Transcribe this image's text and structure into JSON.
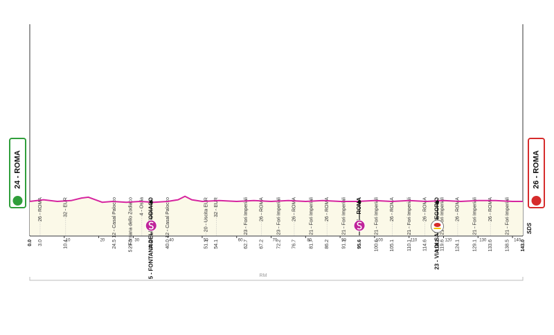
{
  "chart_data": {
    "type": "profile",
    "xlim": [
      0,
      143
    ],
    "xticks": [
      10,
      20,
      30,
      40,
      50,
      60,
      70,
      80,
      90,
      100,
      110,
      120,
      130,
      140
    ],
    "ylim": [
      0,
      100
    ],
    "color": "#d6249f",
    "elevation": {
      "x": [
        0,
        4,
        8,
        12,
        15,
        17,
        19,
        21,
        24,
        28,
        32,
        36,
        40,
        43,
        45,
        47,
        50,
        55,
        60,
        65,
        70,
        75,
        80,
        85,
        90,
        95,
        100,
        105,
        110,
        115,
        120,
        125,
        130,
        135,
        140,
        143
      ],
      "values": [
        40,
        42,
        40,
        41,
        44,
        45,
        42,
        39,
        40,
        39,
        40,
        39,
        40,
        42,
        46,
        42,
        40,
        41,
        40,
        41,
        40,
        41,
        40,
        41,
        40,
        40,
        41,
        40,
        41,
        40,
        41,
        40,
        41,
        41,
        40,
        40
      ]
    },
    "start": "24 - ROMA",
    "finish": "26 - ROMA",
    "region": "RM",
    "logo": "SDS",
    "waypoints": [
      {
        "km": 0,
        "km_label": "0.0"
      },
      {
        "km": 3,
        "km_label": "3.0",
        "name": "26 - ROMA"
      },
      {
        "km": 10.4,
        "km_label": "10.4",
        "name": "32 - EUR"
      },
      {
        "km": 24.5,
        "km_label": "24.5",
        "name": "12 - Casal Palocco"
      },
      {
        "km": 29.3,
        "km_label": "29.3",
        "name": "5 - Fontana dello Zodiaco"
      },
      {
        "km": 32.5,
        "km_label": null,
        "name": "4 - Ostia"
      },
      {
        "km": 35.2,
        "km_label": "35.2",
        "name": "5 - FONTANA DELLO ZODIACO",
        "bold": true,
        "icon": "sprint"
      },
      {
        "km": 40,
        "km_label": "40.0",
        "name": "12 - Casal Palocco"
      },
      {
        "km": 51.1,
        "km_label": "51.1",
        "name": "20 - Uscita EUR"
      },
      {
        "km": 54.1,
        "km_label": "54.1",
        "name": "32 - EUR"
      },
      {
        "km": 62.7,
        "km_label": "62.7",
        "name": "23 - Fori Imperiali"
      },
      {
        "km": 67.2,
        "km_label": "67.2",
        "name": "26 - ROMA"
      },
      {
        "km": 72.2,
        "km_label": "72.2",
        "name": "23 - Fori Imperiali"
      },
      {
        "km": 76.7,
        "km_label": "76.7",
        "name": "26 - ROMA"
      },
      {
        "km": 81.7,
        "km_label": "81.7",
        "name": "21 - Fori Imperiali"
      },
      {
        "km": 86.2,
        "km_label": "86.2",
        "name": "26 - ROMA"
      },
      {
        "km": 91.1,
        "km_label": "91.1",
        "name": "21 - Fori Imperiali"
      },
      {
        "km": 95.6,
        "km_label": "95.6",
        "name": "26 - ROMA",
        "bold": true,
        "icon": "sprint"
      },
      {
        "km": 100.6,
        "km_label": "100.6",
        "name": "21 - Fori Imperiali"
      },
      {
        "km": 105.1,
        "km_label": "105.1",
        "name": "26 - ROMA"
      },
      {
        "km": 110.1,
        "km_label": "110.1",
        "name": "21 - Fori Imperiali"
      },
      {
        "km": 114.6,
        "km_label": "114.6",
        "name": "26 - ROMA"
      },
      {
        "km": 118.2,
        "km_label": "118.2",
        "name": "23 - VIA DI SAN GREGORIO",
        "bold": true,
        "icon": "bonus"
      },
      {
        "km": 119.6,
        "km_label": "119.6",
        "name": "21 - Fori Imperiali"
      },
      {
        "km": 124.1,
        "km_label": "124.1",
        "name": "26 - ROMA"
      },
      {
        "km": 129.1,
        "km_label": "129.1",
        "name": "21 - Fori Imperiali"
      },
      {
        "km": 133.6,
        "km_label": "133.6",
        "name": "26 - ROMA"
      },
      {
        "km": 138.5,
        "km_label": "138.5",
        "name": "21 - Fori Imperiali"
      },
      {
        "km": 143,
        "km_label": "143.0"
      }
    ]
  }
}
